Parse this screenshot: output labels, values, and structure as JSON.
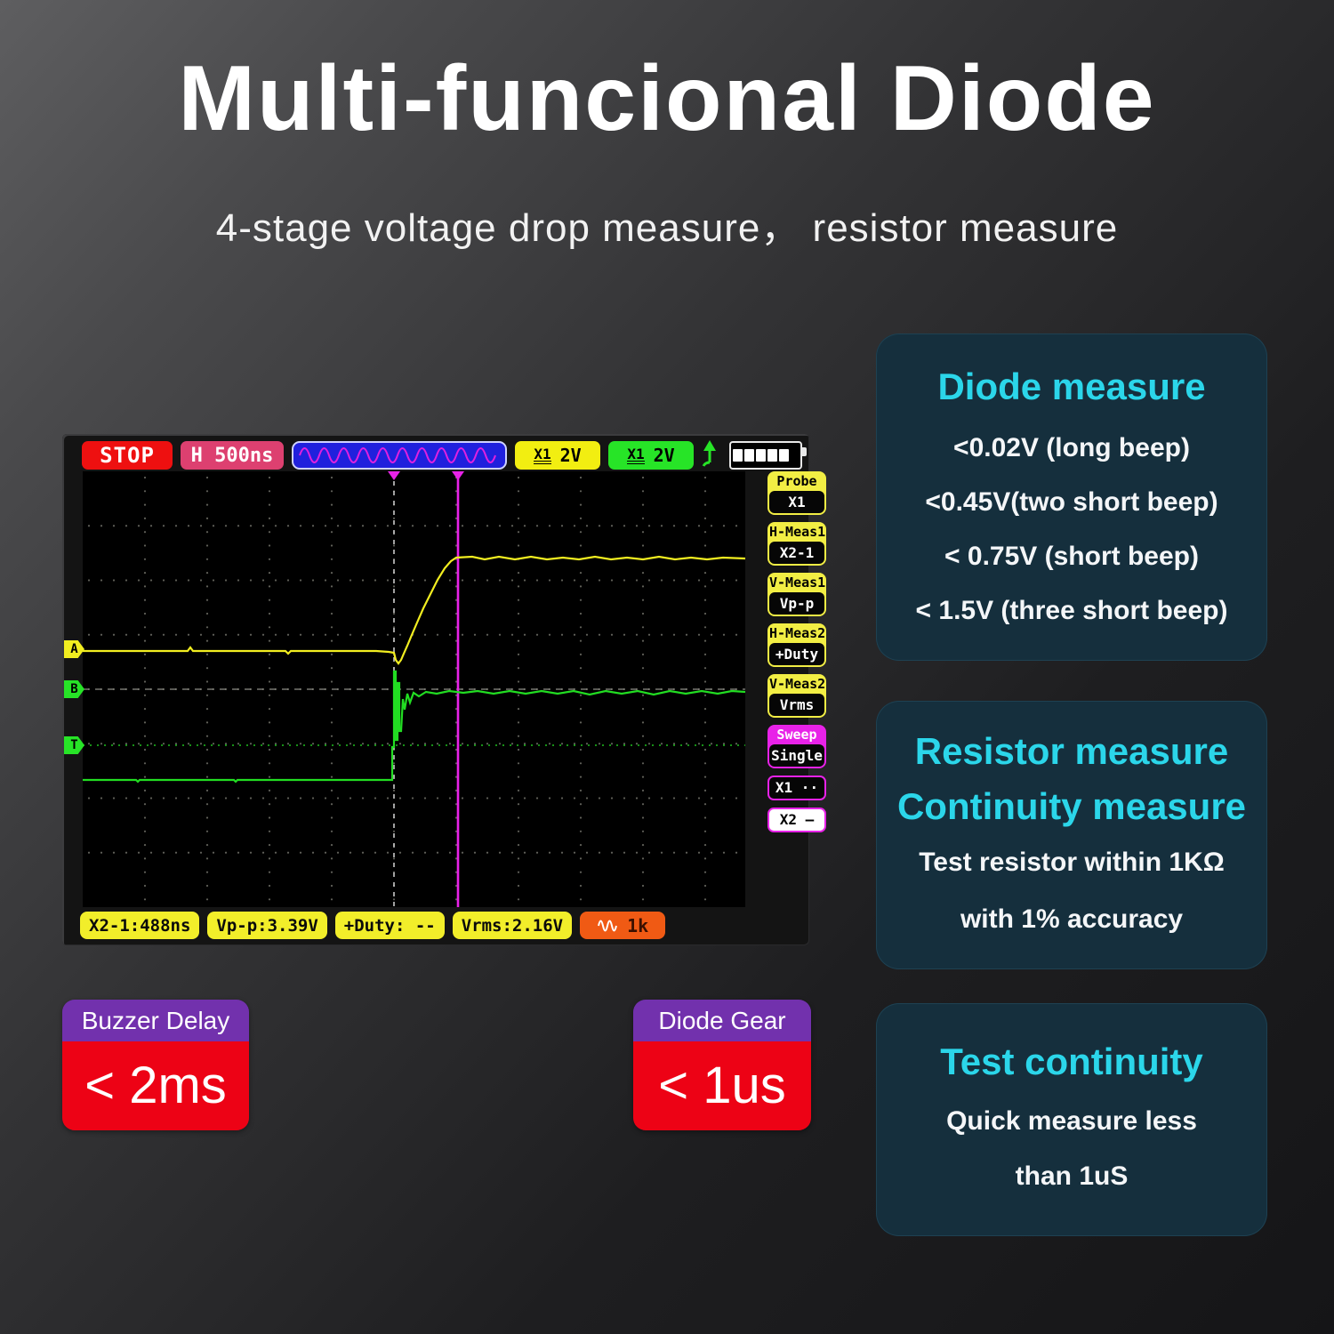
{
  "page": {
    "title": "Multi-funcional Diode",
    "subtitle": "4-stage voltage drop measure， resistor measure"
  },
  "scope": {
    "run_state": "STOP",
    "timebase": "H 500ns",
    "channels": [
      {
        "probe": "X1",
        "scale": "2V"
      },
      {
        "probe": "X1",
        "scale": "2V"
      }
    ],
    "channel_markers": [
      "A",
      "B",
      "T"
    ],
    "menu": [
      {
        "label": "Probe",
        "value": "X1"
      },
      {
        "label": "H-Meas1",
        "value": "X2-1"
      },
      {
        "label": "V-Meas1",
        "value": "Vp-p"
      },
      {
        "label": "H-Meas2",
        "value": "+Duty"
      },
      {
        "label": "V-Meas2",
        "value": "Vrms"
      },
      {
        "label": "Sweep",
        "value": "Single"
      }
    ],
    "cursors": [
      {
        "label": "X1 ··"
      },
      {
        "label": "X2 —"
      }
    ],
    "statusbar": [
      "X2-1:488ns",
      "Vp-p:3.39V",
      "+Duty: --",
      "Vrms:2.16V"
    ],
    "beeper": "1k"
  },
  "cards": [
    {
      "title_lines": [
        "Diode measure"
      ],
      "lines": [
        "<0.02V (long beep)",
        "<0.45V(two short beep)",
        "< 0.75V (short beep)",
        "< 1.5V (three short beep)"
      ]
    },
    {
      "title_lines": [
        "Resistor measure",
        "Continuity measure"
      ],
      "lines": [
        "Test resistor within 1KΩ",
        "with 1% accuracy"
      ]
    },
    {
      "title_lines": [
        "Test continuity"
      ],
      "lines": [
        "Quick measure less",
        "than 1uS"
      ]
    }
  ],
  "badges": [
    {
      "label": "Buzzer Delay",
      "value": "< 2ms"
    },
    {
      "label": "Diode Gear",
      "value": "< 1us"
    }
  ],
  "colors": {
    "accent_cyan": "#2bd6ea",
    "scope_yellow": "#f2ee35",
    "scope_green": "#27e427",
    "magenta": "#e822e8",
    "stop_red": "#ee1010",
    "timebase_pink": "#dd4070",
    "badge_purple": "#7231ad",
    "badge_red": "#ed0215",
    "beeper_orange": "#f05a14",
    "panel_bg": "#152f3d"
  }
}
